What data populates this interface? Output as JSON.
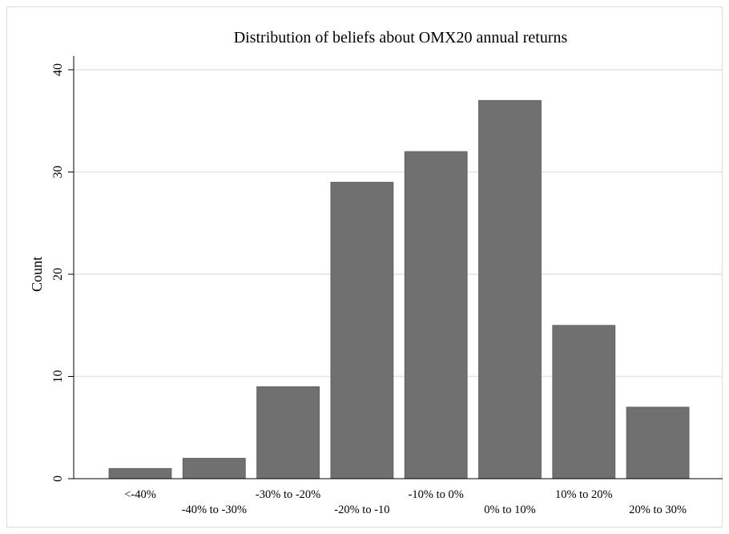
{
  "chart_data": {
    "type": "bar",
    "title": "Distribution of beliefs about OMX20 annual returns",
    "xlabel": "",
    "ylabel": "Count",
    "categories": [
      "<-40%",
      "-40% to -30%",
      "-30% to -20%",
      "-20% to -10",
      "-10% to 0%",
      "0% to 10%",
      "10% to 20%",
      "20% to 30%"
    ],
    "values": [
      1,
      2,
      9,
      29,
      32,
      37,
      15,
      7
    ],
    "ylim": [
      0,
      40
    ],
    "yticks": [
      0,
      10,
      20,
      30,
      40
    ],
    "grid": true,
    "bar_color": "#707070",
    "grid_color": "#e4e4e4"
  }
}
